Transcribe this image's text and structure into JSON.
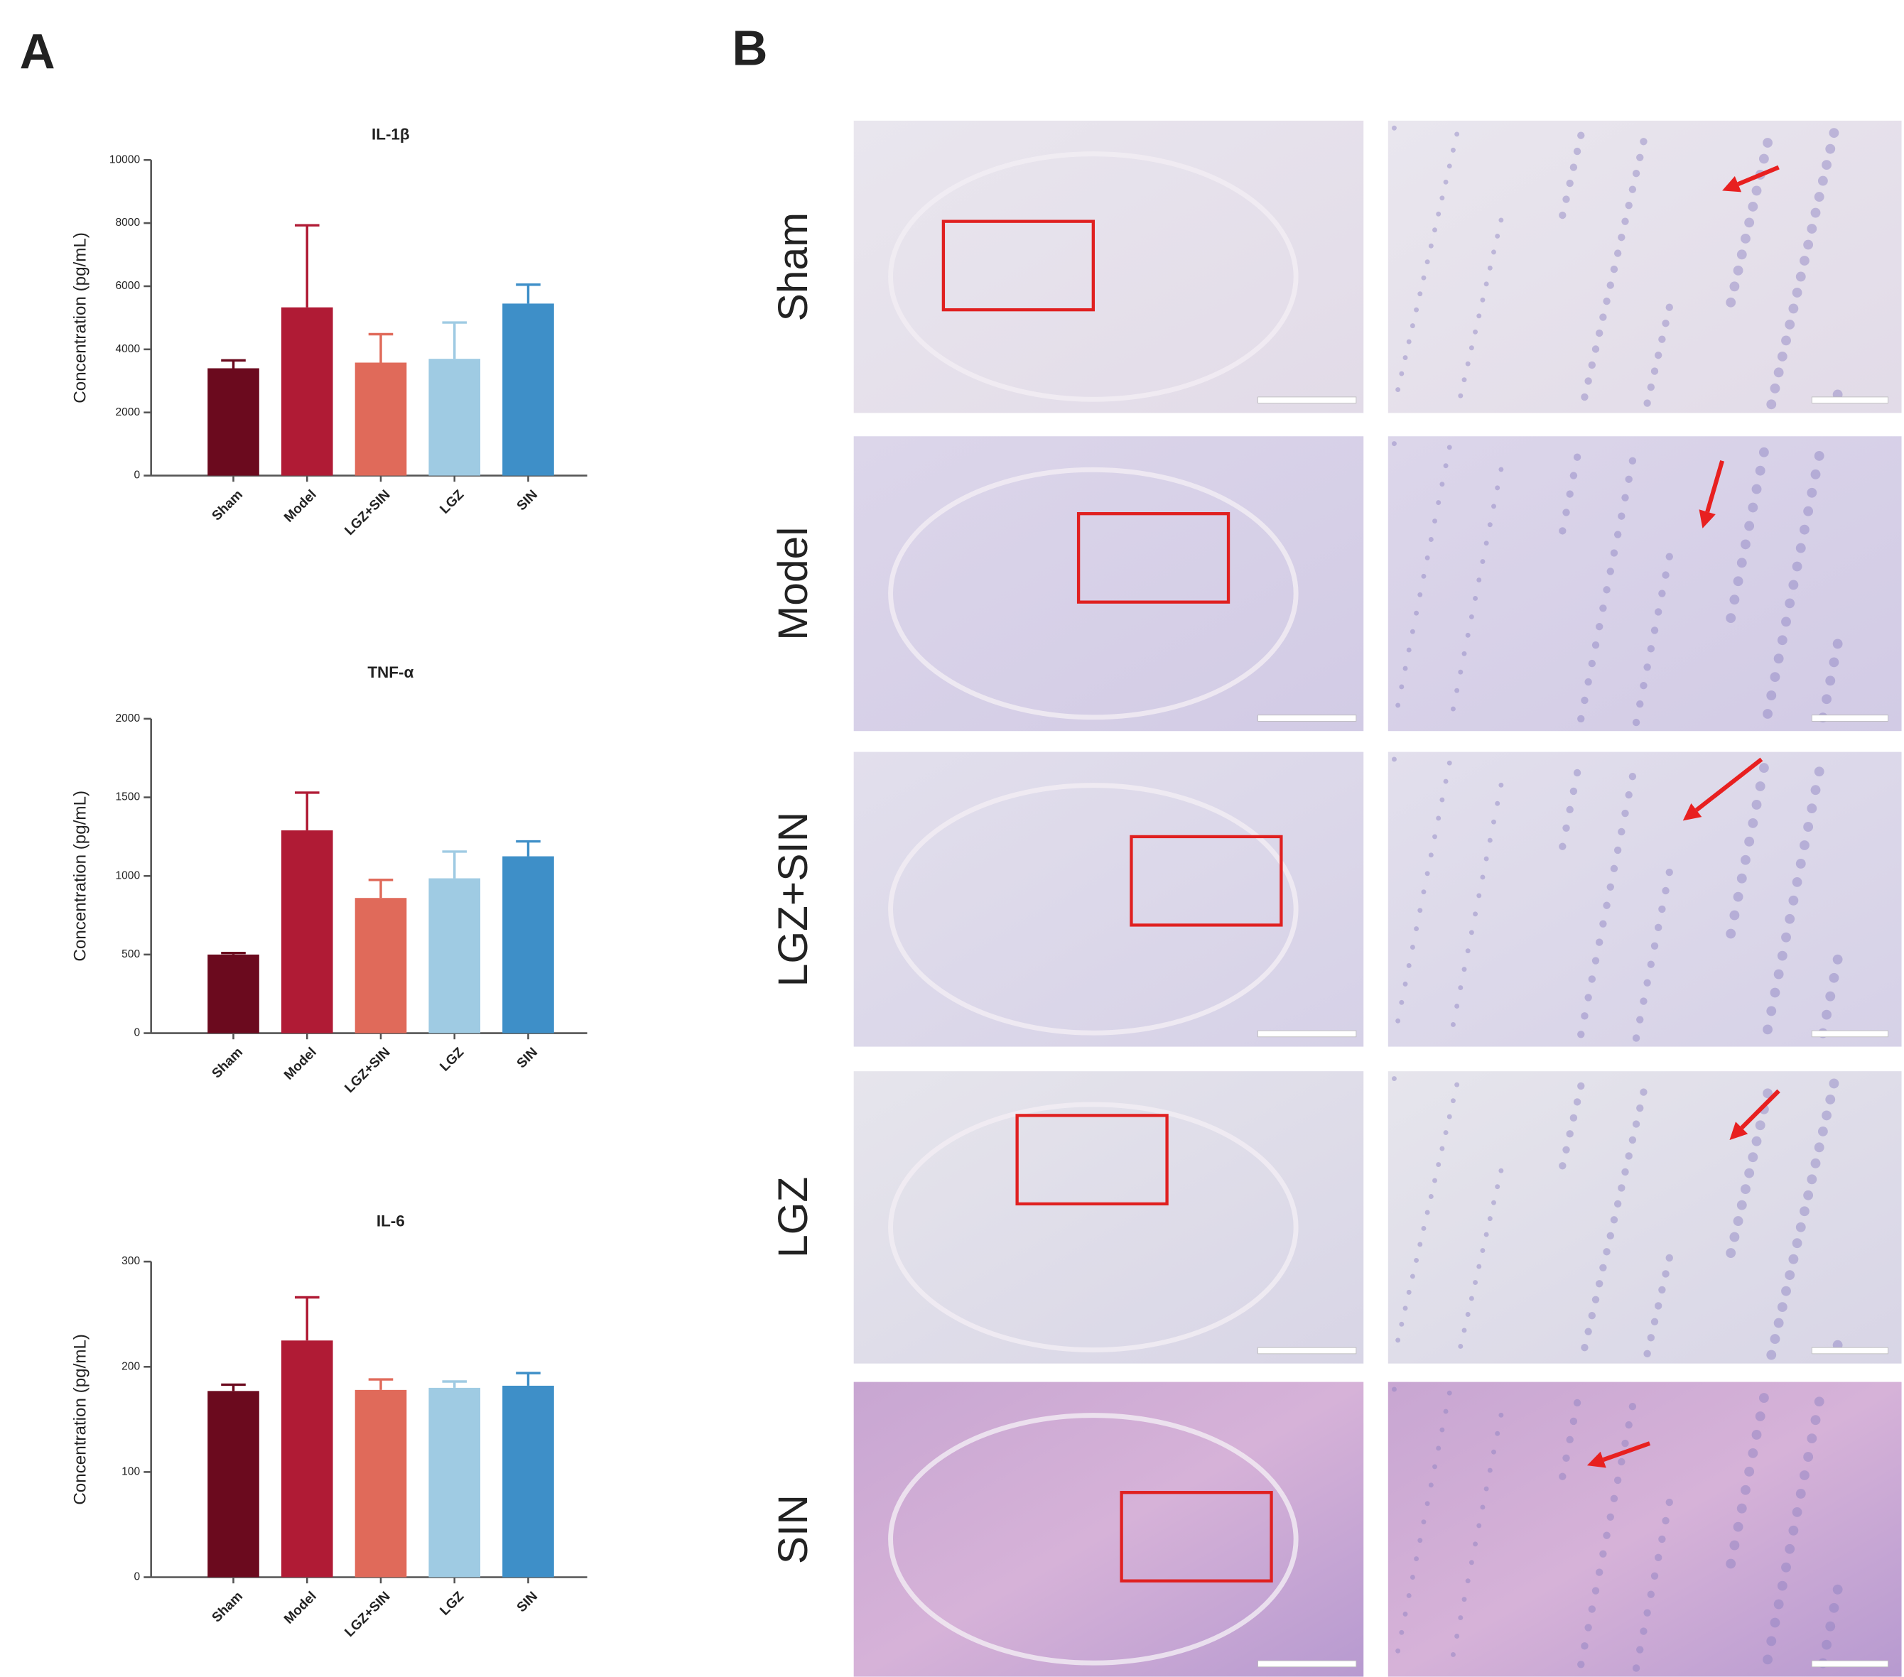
{
  "panels": {
    "a": "A",
    "b": "B"
  },
  "histology": {
    "rows": [
      "Sham",
      "Model",
      "LGZ+SIN",
      "LGZ",
      "SIN"
    ]
  },
  "chart_data": [
    {
      "type": "bar",
      "title": "IL-1β",
      "y_label": "Concentration (pg/mL)",
      "categories": [
        "Sham",
        "Model",
        "LGZ+SIN",
        "LGZ",
        "SIN"
      ],
      "values": [
        3400,
        5330,
        3580,
        3700,
        5450
      ],
      "errors": [
        250,
        2600,
        900,
        1150,
        600
      ],
      "colors": [
        "#6b0a1e",
        "#b01b35",
        "#e06a5a",
        "#9fcbe3",
        "#3e8fc8"
      ],
      "ylim": [
        0,
        10000
      ],
      "yticks": [
        0,
        2000,
        4000,
        6000,
        8000,
        10000
      ]
    },
    {
      "type": "bar",
      "title": "TNF-α",
      "y_label": "Concentration (pg/mL)",
      "categories": [
        "Sham",
        "Model",
        "LGZ+SIN",
        "LGZ",
        "SIN"
      ],
      "values": [
        500,
        1290,
        860,
        985,
        1125
      ],
      "errors": [
        10,
        240,
        115,
        170,
        95
      ],
      "colors": [
        "#6b0a1e",
        "#b01b35",
        "#e06a5a",
        "#9fcbe3",
        "#3e8fc8"
      ],
      "ylim": [
        0,
        2000
      ],
      "yticks": [
        0,
        500,
        1000,
        1500,
        2000
      ]
    },
    {
      "type": "bar",
      "title": "IL-6",
      "y_label": "Concentration (pg/mL)",
      "categories": [
        "Sham",
        "Model",
        "LGZ+SIN",
        "LGZ",
        "SIN"
      ],
      "values": [
        177,
        225,
        178,
        180,
        182
      ],
      "errors": [
        6,
        41,
        10,
        6,
        12
      ],
      "colors": [
        "#6b0a1e",
        "#b01b35",
        "#e06a5a",
        "#9fcbe3",
        "#3e8fc8"
      ],
      "ylim": [
        0,
        300
      ],
      "yticks": [
        0,
        100,
        200,
        300
      ]
    }
  ]
}
